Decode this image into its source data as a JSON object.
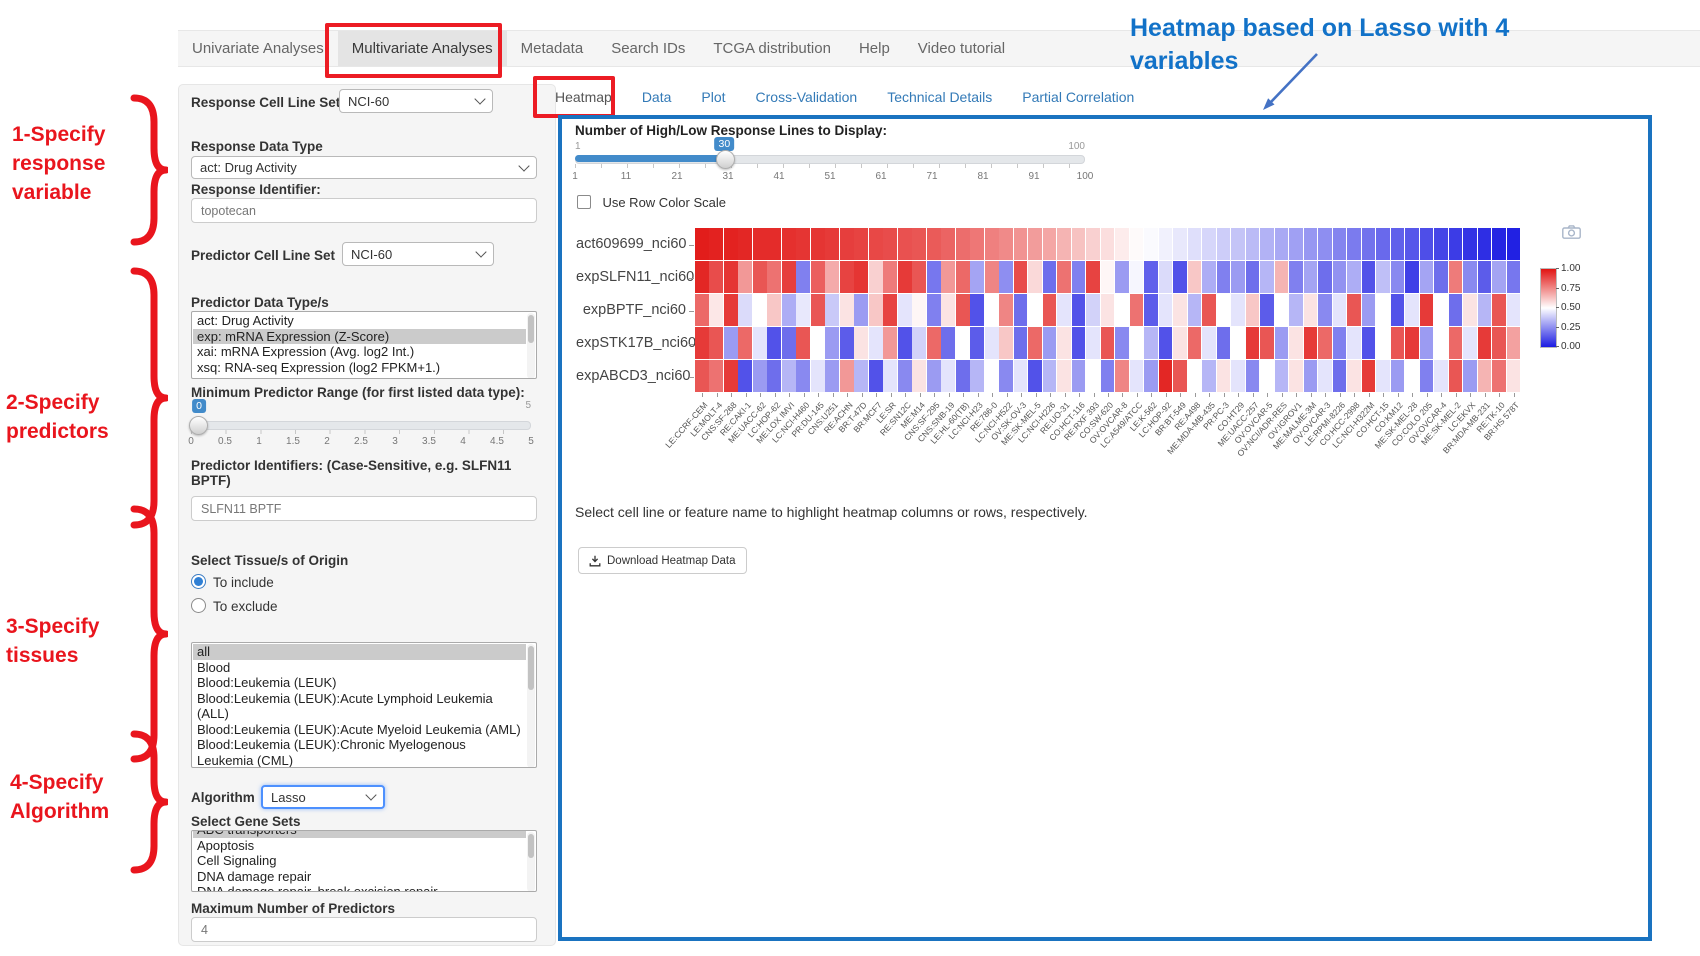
{
  "annotations": {
    "steps": [
      {
        "lines": [
          "1-Specify",
          "response",
          "variable"
        ]
      },
      {
        "lines": [
          "2-Specify",
          "predictors"
        ]
      },
      {
        "lines": [
          "3-Specify",
          "tissues"
        ]
      },
      {
        "lines": [
          "4-Specify",
          "Algorithm"
        ]
      }
    ],
    "heatmap_note_lines": [
      "Heatmap based on Lasso with 4",
      "variables"
    ],
    "red_color": "#e9151d",
    "blue_color": "#1272c8"
  },
  "navbar": {
    "items": [
      "Univariate Analyses",
      "Multivariate Analyses",
      "Metadata",
      "Search IDs",
      "TCGA distribution",
      "Help",
      "Video tutorial"
    ],
    "active": "Multivariate Analyses"
  },
  "sidebar": {
    "response_cell_line_set": {
      "label": "Response Cell Line Set",
      "value": "NCI-60"
    },
    "response_data_type": {
      "label": "Response Data Type",
      "value": "act: Drug Activity"
    },
    "response_identifier": {
      "label": "Response Identifier:",
      "value": "topotecan"
    },
    "predictor_cell_line_set": {
      "label": "Predictor Cell Line Set",
      "value": "NCI-60"
    },
    "predictor_data_types": {
      "label": "Predictor Data Type/s",
      "options": [
        "act: Drug Activity",
        "exp: mRNA Expression (Z-Score)",
        "xai: mRNA Expression (Avg. log2 Int.)",
        "xsq: RNA-seq Expression (log2 FPKM+1.)"
      ],
      "selected": "exp: mRNA Expression (Z-Score)"
    },
    "min_predictor_range": {
      "label": "Minimum Predictor Range (for first listed data type):",
      "value": "0",
      "max_label": "5",
      "ticks": [
        "0",
        "0.5",
        "1",
        "1.5",
        "2",
        "2.5",
        "3",
        "3.5",
        "4",
        "4.5",
        "5"
      ]
    },
    "predictor_identifiers": {
      "label": "Predictor Identifiers: (Case-Sensitive, e.g. SLFN11 BPTF)",
      "value": "SLFN11 BPTF"
    },
    "tissue": {
      "label": "Select Tissue/s of Origin",
      "radios": [
        "To include",
        "To exclude"
      ],
      "selected_radio": "To include",
      "options": [
        "all",
        "Blood",
        "Blood:Leukemia (LEUK)",
        "Blood:Leukemia (LEUK):Acute Lymphoid Leukemia (ALL)",
        "Blood:Leukemia (LEUK):Acute Myeloid Leukemia (AML)",
        "Blood:Leukemia (LEUK):Chronic Myelogenous Leukemia (CML)"
      ],
      "selected": "all"
    },
    "algorithm": {
      "label": "Algorithm",
      "value": "Lasso"
    },
    "gene_sets": {
      "label": "Select Gene Sets",
      "options": [
        "ABC transporters",
        "Apoptosis",
        "Cell Signaling",
        "DNA damage repair",
        "DNA damage repair, break excision repair"
      ],
      "selected": "ABC transporters"
    },
    "max_predictors": {
      "label": "Maximum Number of Predictors",
      "value": "4"
    }
  },
  "panel": {
    "tabs": [
      "Heatmap",
      "Data",
      "Plot",
      "Cross-Validation",
      "Technical Details",
      "Partial Correlation"
    ],
    "active_tab": "Heatmap",
    "lines_slider": {
      "label": "Number of High/Low Response Lines to Display:",
      "min_label": "1",
      "max_label": "100",
      "value": "30",
      "min": 1,
      "max": 100,
      "ticks": [
        "1",
        "11",
        "21",
        "31",
        "41",
        "51",
        "61",
        "71",
        "81",
        "91",
        "100"
      ]
    },
    "row_color_checkbox": "Use Row Color Scale",
    "hint": "Select cell line or feature name to highlight heatmap columns or rows, respectively.",
    "download_button": "Download Heatmap Data"
  },
  "chart_data": {
    "type": "heatmap",
    "title": "",
    "rows": [
      "act609699_nci60",
      "expSLFN11_nci60",
      "expBPTF_nci60",
      "expSTK17B_nci60",
      "expABCD3_nci60"
    ],
    "columns": [
      "LE:CCRF-CEM",
      "LE:MOLT-4",
      "CNS:SF-268",
      "RE:CAKI-1",
      "ME:UACC-62",
      "LC:HOP-62",
      "ME:LOX IMVI",
      "LC:NCI-H460",
      "PR:DU-145",
      "CNS:U251",
      "RE:ACHN",
      "BR:T-47D",
      "BR:MCF7",
      "LE:SR",
      "RE:SN12C",
      "ME:M14",
      "CNS:SF-295",
      "CNS:SNB-19",
      "LE:HL-60(TB)",
      "LC:NCI-H23",
      "RE:786-0",
      "LC:NCI-H522",
      "OV:SK-OV-3",
      "ME:SK-MEL-5",
      "LC:NCI-H226",
      "RE:UO-31",
      "CO:HCT-116",
      "RE:RXF 393",
      "CO:SW-620",
      "OV:OVCAR-8",
      "LC:A549/ATCC",
      "LE:K-562",
      "LC:HOP-92",
      "BR:BT-549",
      "RE:A498",
      "ME:MDA-MB-435",
      "PR:PC-3",
      "CO:HT29",
      "ME:UACC-257",
      "OV:OVCAR-5",
      "OV:NCI/ADR-RES",
      "OV:IGROV1",
      "ME:MALME-3M",
      "OV:OVCAR-3",
      "LE:RPMI-8226",
      "CO:HCC-2998",
      "LC:NCI-H322M",
      "CO:HCT-15",
      "CO:KM12",
      "ME:SK-MEL-28",
      "CO:COLO 205",
      "OV:OVCAR-4",
      "ME:SK-MEL-2",
      "LC:EKVX",
      "BR:MDA-MB-231",
      "RE:TK-10",
      "BR:HS 578T"
    ],
    "values": [
      [
        0.98,
        0.97,
        0.97,
        0.96,
        0.95,
        0.95,
        0.94,
        0.93,
        0.93,
        0.92,
        0.91,
        0.9,
        0.89,
        0.88,
        0.87,
        0.86,
        0.85,
        0.83,
        0.81,
        0.79,
        0.77,
        0.75,
        0.73,
        0.71,
        0.69,
        0.66,
        0.63,
        0.6,
        0.57,
        0.54,
        0.51,
        0.49,
        0.47,
        0.45,
        0.43,
        0.41,
        0.39,
        0.37,
        0.35,
        0.33,
        0.31,
        0.29,
        0.27,
        0.25,
        0.23,
        0.21,
        0.19,
        0.17,
        0.15,
        0.13,
        0.11,
        0.09,
        0.07,
        0.05,
        0.04,
        0.02,
        0.01
      ],
      [
        0.96,
        0.88,
        0.93,
        0.72,
        0.86,
        0.8,
        0.91,
        0.22,
        0.84,
        0.68,
        0.9,
        0.93,
        0.6,
        0.78,
        0.92,
        0.86,
        0.2,
        0.72,
        0.82,
        0.3,
        0.76,
        0.25,
        0.88,
        0.58,
        0.18,
        0.8,
        0.22,
        0.9,
        0.52,
        0.28,
        0.48,
        0.15,
        0.42,
        0.12,
        0.62,
        0.32,
        0.22,
        0.28,
        0.18,
        0.34,
        0.66,
        0.22,
        0.3,
        0.18,
        0.26,
        0.32,
        0.12,
        0.36,
        0.24,
        0.08,
        0.3,
        0.18,
        0.78,
        0.24,
        0.14,
        0.3,
        0.2
      ],
      [
        0.82,
        0.55,
        0.92,
        0.42,
        0.5,
        0.62,
        0.32,
        0.45,
        0.86,
        0.38,
        0.56,
        0.28,
        0.62,
        0.9,
        0.44,
        0.52,
        0.22,
        0.56,
        0.86,
        0.12,
        0.5,
        0.76,
        0.18,
        0.5,
        0.86,
        0.44,
        0.12,
        0.4,
        0.56,
        0.5,
        0.8,
        0.14,
        0.44,
        0.56,
        0.34,
        0.86,
        0.5,
        0.44,
        0.62,
        0.14,
        0.5,
        0.34,
        0.56,
        0.24,
        0.44,
        0.86,
        0.28,
        0.5,
        0.12,
        0.44,
        0.92,
        0.5,
        0.18,
        0.56,
        0.34,
        0.86,
        0.44
      ],
      [
        0.92,
        0.86,
        0.28,
        0.82,
        0.44,
        0.12,
        0.18,
        0.86,
        0.5,
        0.28,
        0.14,
        0.56,
        0.44,
        0.72,
        0.12,
        0.4,
        0.82,
        0.18,
        0.5,
        0.14,
        0.44,
        0.62,
        0.18,
        0.82,
        0.28,
        0.56,
        0.12,
        0.44,
        0.86,
        0.24,
        0.5,
        0.34,
        0.12,
        0.56,
        0.82,
        0.44,
        0.18,
        0.5,
        0.92,
        0.86,
        0.28,
        0.56,
        0.92,
        0.82,
        0.22,
        0.44,
        0.12,
        0.5,
        0.86,
        0.92,
        0.28,
        0.5,
        0.82,
        0.44,
        0.92,
        0.86,
        0.7
      ],
      [
        0.86,
        0.8,
        0.92,
        0.12,
        0.28,
        0.18,
        0.34,
        0.24,
        0.44,
        0.28,
        0.72,
        0.34,
        0.12,
        0.44,
        0.24,
        0.56,
        0.28,
        0.44,
        0.18,
        0.34,
        0.5,
        0.24,
        0.44,
        0.12,
        0.34,
        0.56,
        0.28,
        0.5,
        0.22,
        0.76,
        0.44,
        0.28,
        0.96,
        0.86,
        0.5,
        0.34,
        0.56,
        0.44,
        0.24,
        0.5,
        0.34,
        0.56,
        0.28,
        0.44,
        0.18,
        0.56,
        0.92,
        0.44,
        0.28,
        0.5,
        0.22,
        0.44,
        0.86,
        0.28,
        0.66,
        0.8,
        0.56
      ]
    ],
    "colorscale": {
      "high": "#e11412",
      "mid": "#ffffff",
      "low": "#1c1ce2",
      "range": [
        0,
        1
      ],
      "ticks": [
        "1.00",
        "0.75",
        "0.50",
        "0.25",
        "0.00"
      ]
    },
    "legend_position": "right",
    "xlabel": "",
    "ylabel": ""
  }
}
